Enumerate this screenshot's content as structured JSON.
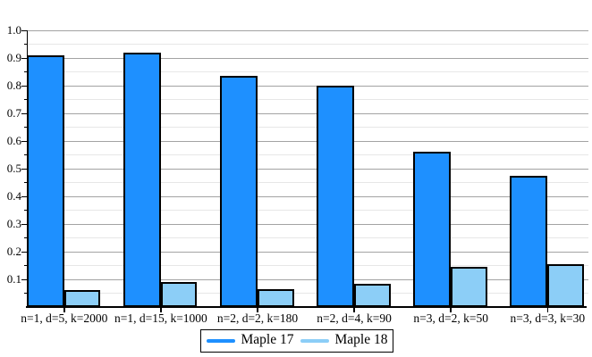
{
  "chart_data": {
    "type": "bar",
    "title": "",
    "xlabel": "",
    "ylabel": "",
    "categories": [
      "n=1, d=5, k=2000",
      "n=1, d=15, k=1000",
      "n=2, d=2, k=180",
      "n=2, d=4, k=90",
      "n=3, d=2, k=50",
      "n=3, d=3, k=30"
    ],
    "series": [
      {
        "name": "Maple 17",
        "color": "#1e90ff",
        "values": [
          0.91,
          0.92,
          0.835,
          0.8,
          0.56,
          0.475
        ]
      },
      {
        "name": "Maple 18",
        "color": "#8ccef7",
        "values": [
          0.06,
          0.09,
          0.065,
          0.085,
          0.145,
          0.155
        ]
      }
    ],
    "ylim": [
      0.0,
      1.0
    ],
    "y_tick_labels": [
      "0.1",
      "0.2",
      "0.3",
      "0.4",
      "0.5",
      "0.6",
      "0.7",
      "0.8",
      "0.9",
      "1.0"
    ],
    "y_major_step": 0.1,
    "y_minor_step": 0.05,
    "grid": true,
    "legend_position": "bottom-center",
    "colors": {
      "grid_major": "#a3a3a3",
      "grid_minor": "#e7e7e7",
      "axis": "#000000",
      "bar_border": "#000000"
    }
  }
}
